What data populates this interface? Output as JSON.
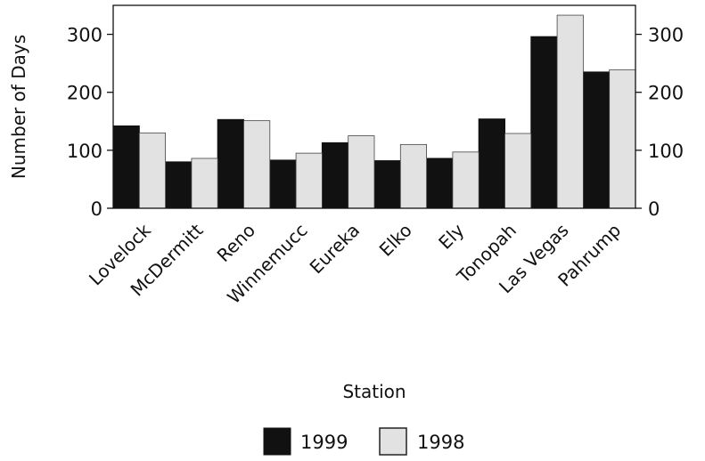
{
  "chart_data": {
    "type": "bar",
    "title": "",
    "xlabel": "Station",
    "ylabel": "Number of Days",
    "ylim": [
      0,
      350
    ],
    "yticks": [
      0,
      100,
      200,
      300
    ],
    "grid": false,
    "legend_position": "bottom-center",
    "categories": [
      "Lovelock",
      "McDermitt",
      "Reno",
      "Winnemucc",
      "Eureka",
      "Elko",
      "Ely",
      "Tonopah",
      "Las Vegas",
      "Pahrump"
    ],
    "series": [
      {
        "name": "1999",
        "color": "#111111",
        "values": [
          142,
          80,
          153,
          83,
          113,
          82,
          86,
          154,
          296,
          235
        ]
      },
      {
        "name": "1998",
        "color": "#e2e2e2",
        "values": [
          130,
          86,
          151,
          95,
          125,
          110,
          97,
          129,
          333,
          239
        ]
      }
    ]
  }
}
